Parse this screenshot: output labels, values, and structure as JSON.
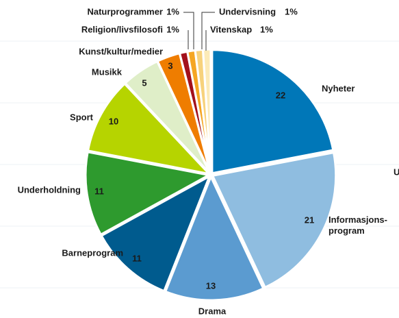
{
  "chart_data": {
    "type": "pie",
    "categories": [
      "Nyheter",
      "Informasjons-program",
      "Drama",
      "Barneprogram",
      "Underholdning",
      "Sport",
      "Musikk",
      "Kunst/kultur/medier",
      "Religion/livsfilosofi",
      "Naturprogrammer",
      "Undervisning",
      "Vitenskap"
    ],
    "values": [
      22,
      21,
      13,
      11,
      11,
      10,
      5,
      3,
      1,
      1,
      1,
      1
    ],
    "value_labels": [
      "22",
      "21",
      "13",
      "11",
      "11",
      "10",
      "5",
      "3",
      "1%",
      "1%",
      "1%",
      "1%"
    ],
    "colors": [
      "#0077b8",
      "#8fbde0",
      "#5b9bd0",
      "#005b8e",
      "#2e9a2e",
      "#b6d400",
      "#dfeec8",
      "#ef7d00",
      "#a3111c",
      "#f5a623",
      "#f7d27c",
      "#fcebb8"
    ],
    "cropped_label": "U"
  }
}
